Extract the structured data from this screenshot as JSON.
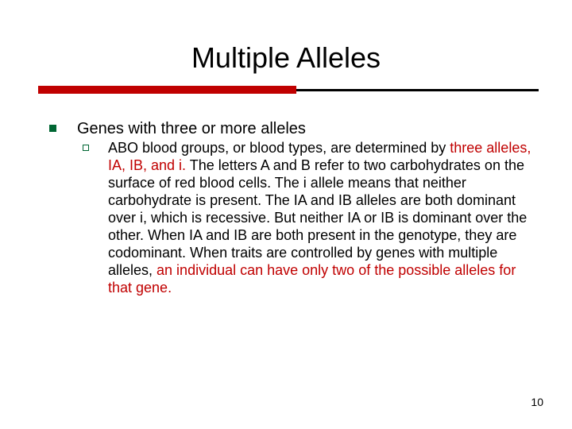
{
  "title": "Multiple Alleles",
  "colors": {
    "rule_base": "#000000",
    "rule_accent": "#c00000",
    "bullet_l1": "#006633",
    "bullet_l2_border": "#006633",
    "highlight_text": "#c00000",
    "body_text": "#000000",
    "background": "#ffffff"
  },
  "layout": {
    "slide_width": 720,
    "slide_height": 540,
    "title_fontsize": 36,
    "l1_fontsize": 20,
    "l2_fontsize": 18,
    "rule_base_height": 3,
    "rule_accent_height": 10,
    "rule_accent_width": 325,
    "rule_total_width": 630,
    "l1_bullet_size": 9,
    "l2_bullet_size": 8
  },
  "outline": {
    "l1_text": "Genes with three or more alleles",
    "l2": {
      "seg1": "ABO blood groups, or blood types, are determined by ",
      "hl1": "three alleles, IA, IB, and i.",
      "seg2": "  The letters A and B refer to two carbohydrates on the surface of red blood cells.  The i allele means that neither carbohydrate is present.  The IA and IB alleles are both dominant over i, which is recessive.  But neither IA or IB is dominant over the other.  When IA and IB are both present in the genotype, they are codominant.  When traits are controlled by genes with multiple alleles, ",
      "hl2": "an individual can have only two of the possible alleles for that gene."
    }
  },
  "page_number": "10"
}
